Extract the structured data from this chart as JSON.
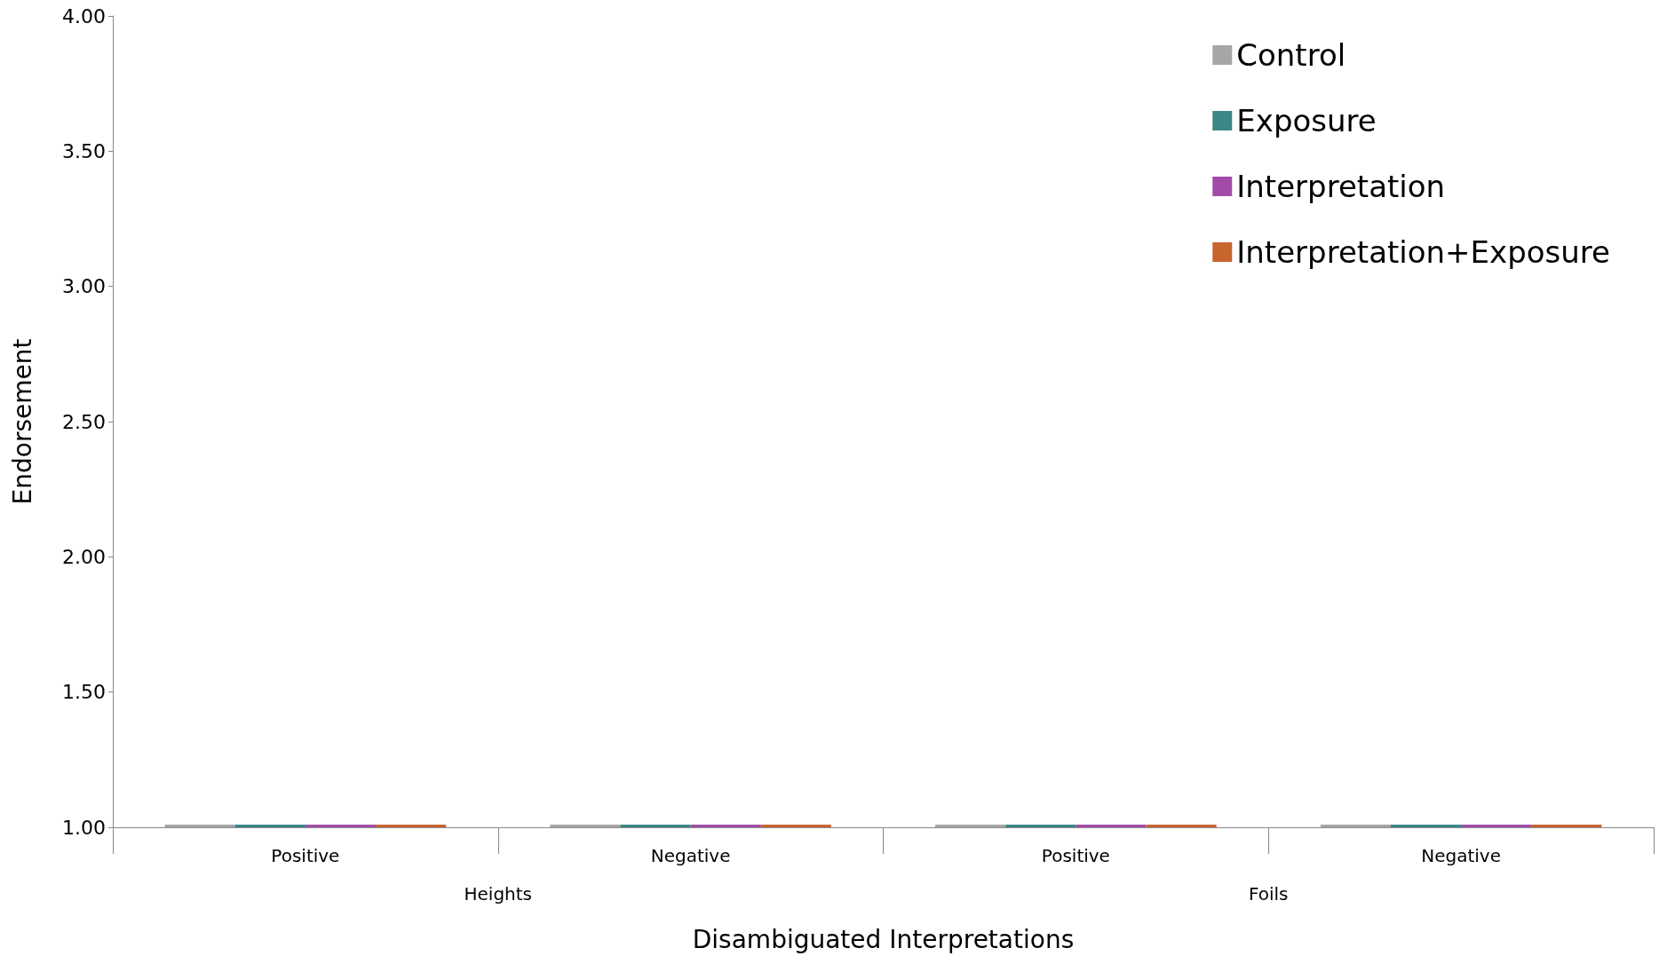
{
  "chart_data": {
    "type": "bar",
    "xlabel": "Disambiguated Interpretations",
    "ylabel": "Endorsement",
    "categories": [
      "Positive",
      "Negative",
      "Positive",
      "Negative"
    ],
    "series": [
      {
        "name": "Control",
        "color": "#a6a6a6",
        "values": [
          1.01,
          1.01,
          1.01,
          1.01
        ]
      },
      {
        "name": "Exposure",
        "color": "#3b8686",
        "values": [
          1.01,
          1.01,
          1.01,
          1.01
        ]
      },
      {
        "name": "Interpretation",
        "color": "#a24ca8",
        "values": [
          1.01,
          1.01,
          1.01,
          1.01
        ]
      },
      {
        "name": "Interpretation+Exposure",
        "color": "#c8642e",
        "values": [
          1.01,
          1.01,
          1.01,
          1.01
        ]
      }
    ],
    "ylim": [
      1,
      4
    ],
    "yticks": [
      {
        "value": 1,
        "label": "1.00"
      },
      {
        "value": 1.5,
        "label": "1.50"
      },
      {
        "value": 2,
        "label": "2.00"
      },
      {
        "value": 2.5,
        "label": "2.50"
      },
      {
        "value": 3,
        "label": "3.00"
      },
      {
        "value": 3.5,
        "label": "3.50"
      },
      {
        "value": 4,
        "label": "4.00"
      }
    ],
    "annotations": [
      "Heights",
      "Foils"
    ],
    "grid": false,
    "legend": "top right"
  }
}
